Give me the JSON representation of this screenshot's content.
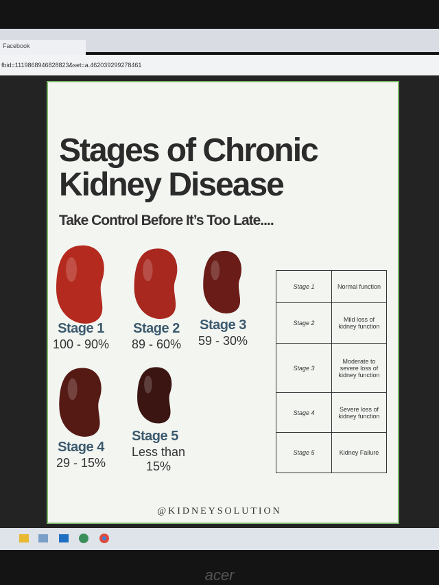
{
  "browser": {
    "tab_title": "Facebook",
    "url": "fbid=1119868946828823&set=a.462039299278461"
  },
  "poster": {
    "title_line1": "Stages of Chronic",
    "title_line2": "Kidney Disease",
    "subtitle": "Take Control Before It’s Too Late....",
    "stages": [
      {
        "label": "Stage 1",
        "range": "100 - 90%"
      },
      {
        "label": "Stage 2",
        "range": "89 - 60%"
      },
      {
        "label": "Stage 3",
        "range": "59 - 30%"
      },
      {
        "label": "Stage 4",
        "range": "29 - 15%"
      },
      {
        "label": "Stage 5",
        "range": "Less than 15%"
      }
    ],
    "table": [
      {
        "stage": "Stage 1",
        "description": "Normal function"
      },
      {
        "stage": "Stage 2",
        "description": "Mild loss of kidney function"
      },
      {
        "stage": "Stage 3",
        "description": "Moderate to severe loss of kidney function"
      },
      {
        "stage": "Stage 4",
        "description": "Severe loss of kidney function"
      },
      {
        "stage": "Stage 5",
        "description": "Kidney Failure"
      }
    ],
    "footer": "@KIDNEYSOLUTION"
  },
  "monitor": {
    "brand": "acer"
  }
}
